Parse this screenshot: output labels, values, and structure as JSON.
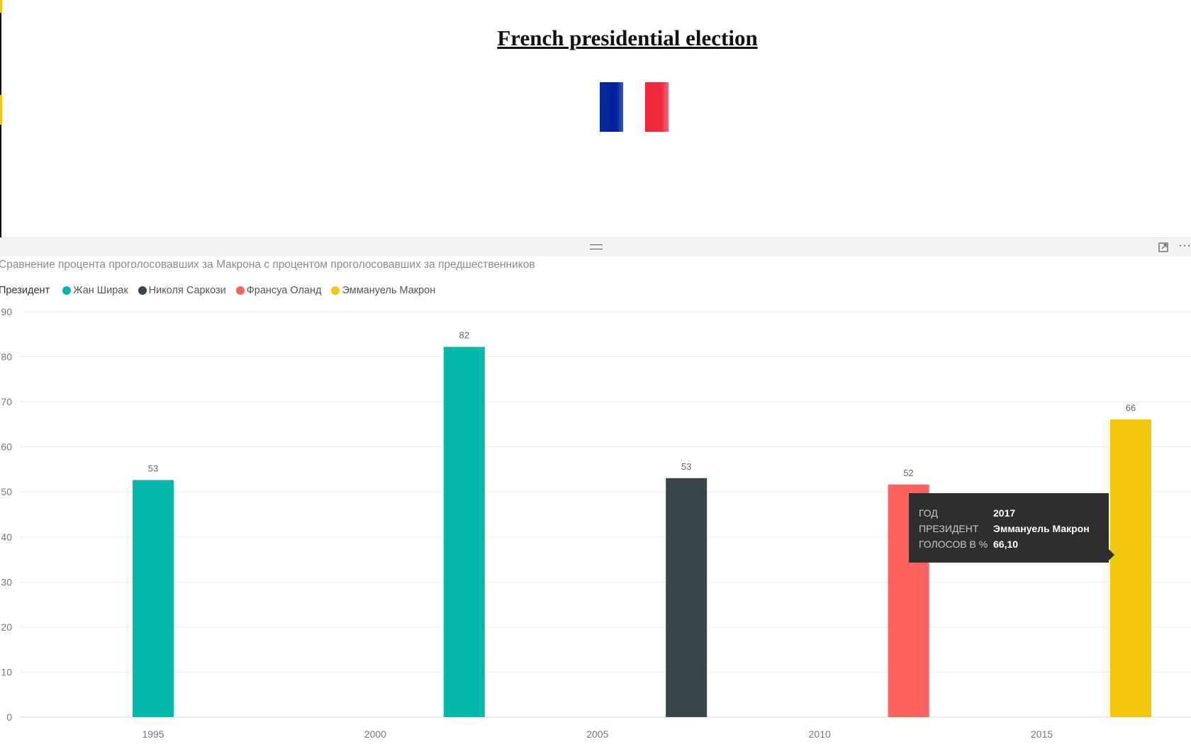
{
  "header": {
    "title": "French presidential election"
  },
  "chart_data": {
    "type": "bar",
    "title": "Сравнение процента проголосовавших за Макрона с процентом проголосовавших за предшественников",
    "legend_title": "Президент",
    "legend_placement": "top-left",
    "grid": true,
    "xlim": [
      1992,
      2020
    ],
    "ylim": [
      0,
      90
    ],
    "x_ticks": [
      "1995",
      "2000",
      "2005",
      "2010",
      "2015"
    ],
    "y_ticks": [
      "0",
      "10",
      "20",
      "30",
      "40",
      "50",
      "60",
      "70",
      "80",
      "90"
    ],
    "series": [
      {
        "name": "Жан Ширак",
        "color": "#01b8aa",
        "points": [
          {
            "x": 1995,
            "y": 52.64,
            "label": "53"
          },
          {
            "x": 2002,
            "y": 82.21,
            "label": "82"
          }
        ]
      },
      {
        "name": "Николя Саркози",
        "color": "#374649",
        "points": [
          {
            "x": 2007,
            "y": 53.06,
            "label": "53"
          }
        ]
      },
      {
        "name": "Франсуа Оланд",
        "color": "#fd625e",
        "points": [
          {
            "x": 2012,
            "y": 51.64,
            "label": "52"
          }
        ]
      },
      {
        "name": "Эммануель Макрон",
        "color": "#f2c80f",
        "points": [
          {
            "x": 2017,
            "y": 66.1,
            "label": "66"
          }
        ]
      }
    ]
  },
  "tooltip": {
    "rows": [
      {
        "key": "ГОД",
        "value": "2017"
      },
      {
        "key": "ПРЕЗИДЕНТ",
        "value": "Эммануель Макрон"
      },
      {
        "key": "ГОЛОСОВ В %",
        "value": "66,10"
      }
    ]
  },
  "icons": {
    "drag": "drag-handle-icon",
    "focus": "focus-mode-icon",
    "more": "more-options-icon",
    "flag": "france-flag"
  }
}
